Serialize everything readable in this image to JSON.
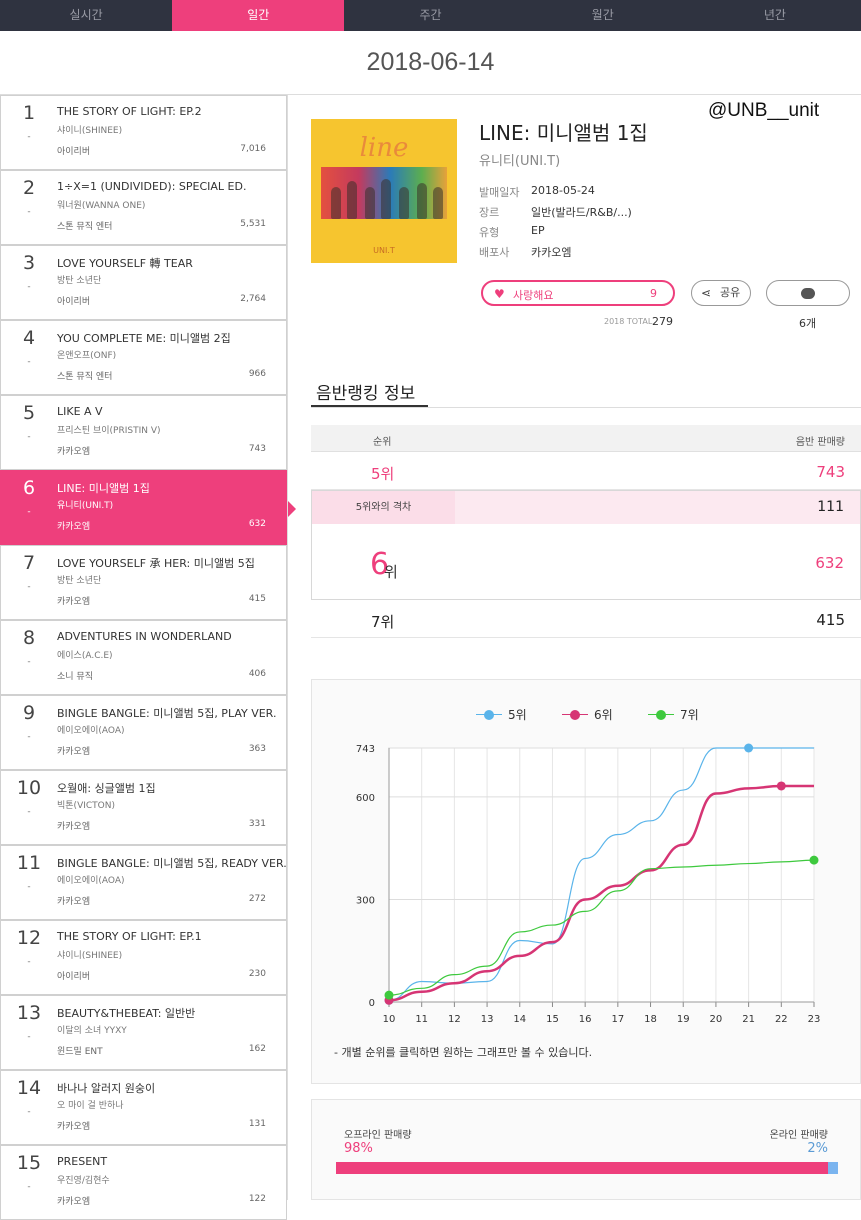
{
  "tabs": [
    "실시간",
    "일간",
    "주간",
    "월간",
    "년간"
  ],
  "date": "2018-06-14",
  "watermark": "@UNB__unit",
  "chart_list": [
    {
      "rank": "1",
      "title": "THE STORY OF LIGHT: EP.2",
      "artist": "샤이니(SHINEE)",
      "label": "아이리버",
      "sales": "7,016"
    },
    {
      "rank": "2",
      "title": "1÷X=1 (UNDIVIDED): SPECIAL ED.",
      "artist": "워너원(WANNA ONE)",
      "label": "스톤 뮤직 엔터",
      "sales": "5,531"
    },
    {
      "rank": "3",
      "title": "LOVE YOURSELF 轉 TEAR",
      "artist": "방탄 소년단",
      "label": "아이리버",
      "sales": "2,764"
    },
    {
      "rank": "4",
      "title": "YOU COMPLETE ME: 미니앨범 2집",
      "artist": "온앤오프(ONF)",
      "label": "스톤 뮤직 엔터",
      "sales": "966"
    },
    {
      "rank": "5",
      "title": "LIKE A V",
      "artist": "프리스틴 브이(PRISTIN V)",
      "label": "카카오엠",
      "sales": "743"
    },
    {
      "rank": "6",
      "title": "LINE: 미니앨범 1집",
      "artist": "유니티(UNI.T)",
      "label": "카카오엠",
      "sales": "632"
    },
    {
      "rank": "7",
      "title": "LOVE YOURSELF 承 HER: 미니앨범 5집",
      "artist": "방탄 소년단",
      "label": "카카오엠",
      "sales": "415"
    },
    {
      "rank": "8",
      "title": "ADVENTURES IN WONDERLAND",
      "artist": "에이스(A.C.E)",
      "label": "소니 뮤직",
      "sales": "406"
    },
    {
      "rank": "9",
      "title": "BINGLE BANGLE: 미니앨범 5집, PLAY VER.",
      "artist": "에이오에이(AOA)",
      "label": "카카오엠",
      "sales": "363"
    },
    {
      "rank": "10",
      "title": "오월애: 싱글앨범 1집",
      "artist": "빅톤(VICTON)",
      "label": "카카오엠",
      "sales": "331"
    },
    {
      "rank": "11",
      "title": "BINGLE BANGLE: 미니앨범 5집, READY VER.",
      "artist": "에이오에이(AOA)",
      "label": "카카오엠",
      "sales": "272"
    },
    {
      "rank": "12",
      "title": "THE STORY OF LIGHT: EP.1",
      "artist": "샤이니(SHINEE)",
      "label": "아이리버",
      "sales": "230"
    },
    {
      "rank": "13",
      "title": "BEAUTY&THEBEAT: 일반반",
      "artist": "이달의 소녀 YYXY",
      "label": "윈드밀 ENT",
      "sales": "162"
    },
    {
      "rank": "14",
      "title": "바나나 알러지 원숭이",
      "artist": "오 마이 걸 반하나",
      "label": "카카오엠",
      "sales": "131"
    },
    {
      "rank": "15",
      "title": "PRESENT",
      "artist": "우진영/김현수",
      "label": "카카오엠",
      "sales": "122"
    }
  ],
  "row_dash": "-",
  "album": {
    "cover_script": "line",
    "cover_logo": "UNI.T",
    "title": "LINE: 미니앨범 1집",
    "artist": "유니티(UNI.T)",
    "meta": [
      {
        "key": "발매일자",
        "value": "2018-05-24"
      },
      {
        "key": "장르",
        "value": "일반(발라드/R&B/...)"
      },
      {
        "key": "유형",
        "value": "EP"
      },
      {
        "key": "배포사",
        "value": "카카오엠"
      }
    ],
    "love_label": "사랑해요",
    "love_count": "9",
    "share_label": "공유",
    "total_label": "2018 TOTAL",
    "total_value": "279",
    "comment_count": "6개"
  },
  "ranking": {
    "section_title": "음반랭킹 정보",
    "col_rank": "순위",
    "col_sales": "음반 판매량",
    "above_rank": "5위",
    "above_sales": "743",
    "gap_label": "5위와의 격차",
    "gap_value": "111",
    "current_rank": "6",
    "current_rank_suffix": "위",
    "current_sales": "632",
    "below_rank": "7위",
    "below_sales": "415"
  },
  "chart_note": "- 개별 순위를 클릭하면 원하는 그래프만 볼 수 있습니다.",
  "colors": {
    "accent": "#ee3f7c",
    "rank5": "#5ab4ea",
    "rank6": "#d63574",
    "rank7": "#3ec93e"
  },
  "chart_data": {
    "type": "line",
    "x": [
      10,
      11,
      12,
      13,
      14,
      15,
      16,
      17,
      18,
      19,
      20,
      21,
      22,
      23
    ],
    "yticks": [
      0,
      300,
      600,
      743
    ],
    "ylim": [
      0,
      743
    ],
    "legend_position": "top-center",
    "series": [
      {
        "name": "5위",
        "color": "#5ab4ea",
        "values": [
          5,
          60,
          55,
          60,
          180,
          170,
          420,
          490,
          530,
          620,
          743,
          743,
          743,
          743
        ]
      },
      {
        "name": "6위",
        "color": "#d63574",
        "values": [
          5,
          30,
          55,
          90,
          135,
          175,
          300,
          340,
          385,
          460,
          610,
          625,
          632,
          632
        ]
      },
      {
        "name": "7위",
        "color": "#3ec93e",
        "values": [
          20,
          40,
          80,
          105,
          205,
          225,
          265,
          325,
          390,
          395,
          400,
          405,
          410,
          415
        ]
      }
    ]
  },
  "sales_split": {
    "offline_label": "오프라인 판매량",
    "online_label": "온라인 판매량",
    "offline_pct": "98%",
    "online_pct": "2%",
    "online_fraction": 0.02
  }
}
